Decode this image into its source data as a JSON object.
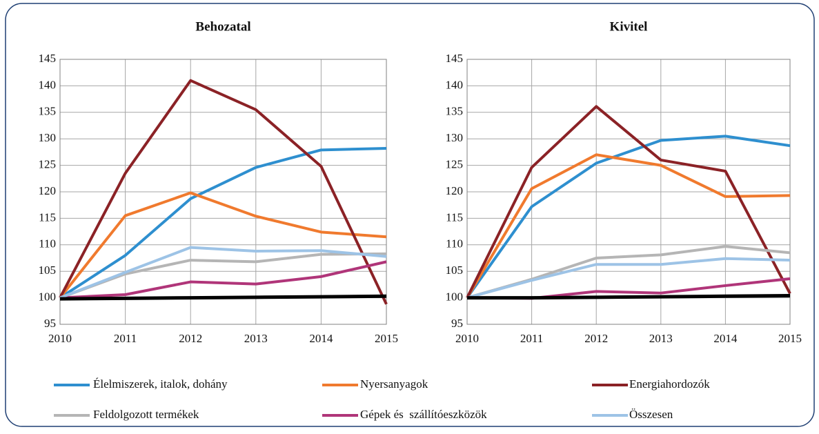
{
  "chart_data": [
    {
      "type": "line",
      "title": "Behozatal",
      "x": [
        2010,
        2011,
        2012,
        2013,
        2014,
        2015
      ],
      "xlim": [
        2010,
        2015
      ],
      "xticks": [
        2010,
        2011,
        2012,
        2013,
        2014,
        2015
      ],
      "ylim": [
        95,
        145
      ],
      "yticks": [
        95,
        100,
        105,
        110,
        115,
        120,
        125,
        130,
        135,
        140,
        145
      ],
      "grid": true,
      "series": [
        {
          "color": "#2e8fcf",
          "values": [
            100,
            108,
            118.7,
            124.6,
            127.9,
            128.2
          ]
        },
        {
          "color": "#f07a2e",
          "values": [
            100,
            115.5,
            119.8,
            115.4,
            112.4,
            111.5
          ]
        },
        {
          "color": "#8b2226",
          "values": [
            100,
            123.5,
            141,
            135.5,
            124.8,
            98.8
          ]
        },
        {
          "color": "#b5b5b5",
          "values": [
            100,
            104.5,
            107.1,
            106.8,
            108.2,
            108.3
          ]
        },
        {
          "color": "#b03579",
          "values": [
            100,
            100.6,
            103,
            102.6,
            104,
            106.8
          ]
        },
        {
          "color": "#9dc3e6",
          "values": [
            100,
            104.8,
            109.5,
            108.8,
            108.9,
            107.8
          ]
        },
        {
          "color": "#000000",
          "values": [
            99.8,
            99.9,
            100,
            100.1,
            100.2,
            100.3
          ]
        }
      ]
    },
    {
      "type": "line",
      "title": "Kivitel",
      "x": [
        2010,
        2011,
        2012,
        2013,
        2014,
        2015
      ],
      "xlim": [
        2010,
        2015
      ],
      "xticks": [
        2010,
        2011,
        2012,
        2013,
        2014,
        2015
      ],
      "ylim": [
        95,
        145
      ],
      "yticks": [
        95,
        100,
        105,
        110,
        115,
        120,
        125,
        130,
        135,
        140,
        145
      ],
      "grid": true,
      "series": [
        {
          "color": "#2e8fcf",
          "values": [
            100,
            117.2,
            125.4,
            129.7,
            130.5,
            128.7
          ]
        },
        {
          "color": "#f07a2e",
          "values": [
            100,
            120.6,
            127,
            125,
            119.1,
            119.3
          ]
        },
        {
          "color": "#8b2226",
          "values": [
            100,
            124.6,
            136.1,
            126,
            123.9,
            100.8
          ]
        },
        {
          "color": "#b5b5b5",
          "values": [
            100,
            103.5,
            107.5,
            108.1,
            109.7,
            108.5
          ]
        },
        {
          "color": "#b03579",
          "values": [
            100,
            99.9,
            101.2,
            100.9,
            102.3,
            103.6
          ]
        },
        {
          "color": "#9dc3e6",
          "values": [
            100,
            103.3,
            106.3,
            106.3,
            107.4,
            107.1
          ]
        },
        {
          "color": "#000000",
          "values": [
            100,
            100,
            100.1,
            100.2,
            100.3,
            100.4
          ]
        }
      ]
    }
  ],
  "legend": [
    "Élelmiszerek, italok, dohány",
    "Nyersanyagok",
    "Energiahordozók",
    "Feldolgozott termékek",
    "Gépek és  szállítóeszközök",
    "Összesen"
  ]
}
